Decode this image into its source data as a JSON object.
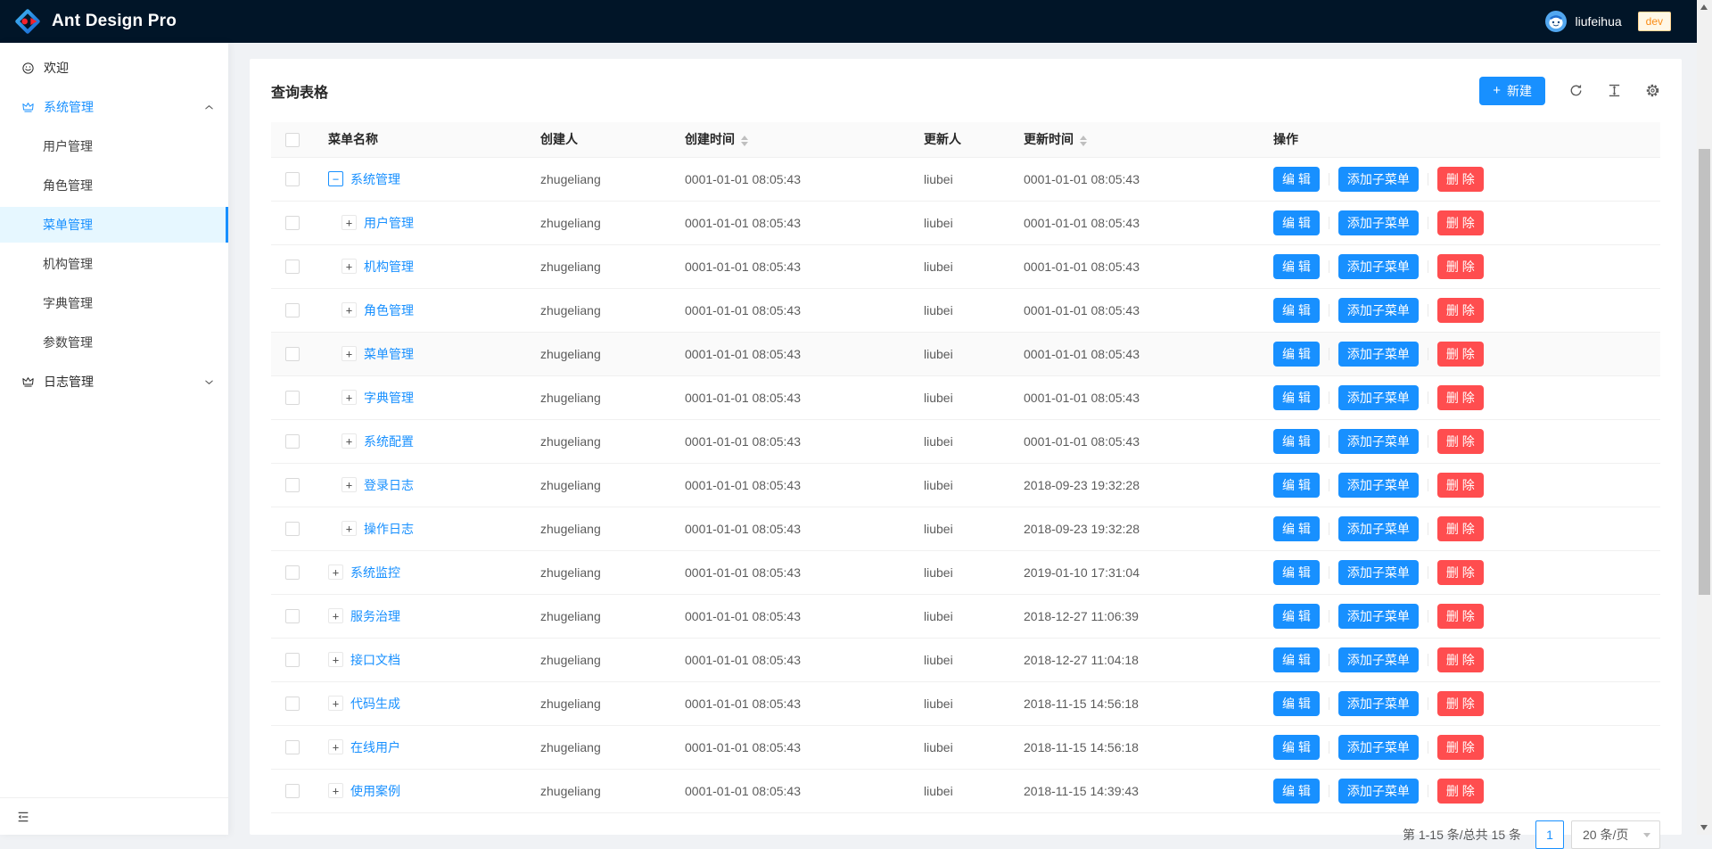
{
  "topbar": {
    "title": "Ant Design Pro",
    "user_name": "liufeihua",
    "env_tag": "dev"
  },
  "sidebar": {
    "welcome": "欢迎",
    "system_group": "系统管理",
    "system_children": [
      "用户管理",
      "角色管理",
      "菜单管理",
      "机构管理",
      "字典管理",
      "参数管理"
    ],
    "selected": "菜单管理",
    "log_group": "日志管理"
  },
  "card": {
    "title": "查询表格",
    "new_button": "新建"
  },
  "table": {
    "headers": {
      "name": "菜单名称",
      "creator": "创建人",
      "created": "创建时间",
      "updater": "更新人",
      "updated": "更新时间",
      "actions": "操作"
    },
    "action_labels": {
      "edit": "编 辑",
      "add_child": "添加子菜单",
      "remove": "删 除"
    },
    "rows": [
      {
        "name": "系统管理",
        "level": 0,
        "expand": "minus",
        "creator": "zhugeliang",
        "created": "0001-01-01 08:05:43",
        "updater": "liubei",
        "updated": "0001-01-01 08:05:43"
      },
      {
        "name": "用户管理",
        "level": 1,
        "expand": "plus",
        "creator": "zhugeliang",
        "created": "0001-01-01 08:05:43",
        "updater": "liubei",
        "updated": "0001-01-01 08:05:43"
      },
      {
        "name": "机构管理",
        "level": 1,
        "expand": "plus",
        "creator": "zhugeliang",
        "created": "0001-01-01 08:05:43",
        "updater": "liubei",
        "updated": "0001-01-01 08:05:43"
      },
      {
        "name": "角色管理",
        "level": 1,
        "expand": "plus",
        "creator": "zhugeliang",
        "created": "0001-01-01 08:05:43",
        "updater": "liubei",
        "updated": "0001-01-01 08:05:43"
      },
      {
        "name": "菜单管理",
        "level": 1,
        "expand": "plus",
        "creator": "zhugeliang",
        "created": "0001-01-01 08:05:43",
        "updater": "liubei",
        "updated": "0001-01-01 08:05:43",
        "hover": true
      },
      {
        "name": "字典管理",
        "level": 1,
        "expand": "plus",
        "creator": "zhugeliang",
        "created": "0001-01-01 08:05:43",
        "updater": "liubei",
        "updated": "0001-01-01 08:05:43"
      },
      {
        "name": "系统配置",
        "level": 1,
        "expand": "plus",
        "creator": "zhugeliang",
        "created": "0001-01-01 08:05:43",
        "updater": "liubei",
        "updated": "0001-01-01 08:05:43"
      },
      {
        "name": "登录日志",
        "level": 1,
        "expand": "plus",
        "creator": "zhugeliang",
        "created": "0001-01-01 08:05:43",
        "updater": "liubei",
        "updated": "2018-09-23 19:32:28"
      },
      {
        "name": "操作日志",
        "level": 1,
        "expand": "plus",
        "creator": "zhugeliang",
        "created": "0001-01-01 08:05:43",
        "updater": "liubei",
        "updated": "2018-09-23 19:32:28"
      },
      {
        "name": "系统监控",
        "level": 0,
        "expand": "plus",
        "creator": "zhugeliang",
        "created": "0001-01-01 08:05:43",
        "updater": "liubei",
        "updated": "2019-01-10 17:31:04"
      },
      {
        "name": "服务治理",
        "level": 0,
        "expand": "plus",
        "creator": "zhugeliang",
        "created": "0001-01-01 08:05:43",
        "updater": "liubei",
        "updated": "2018-12-27 11:06:39"
      },
      {
        "name": "接口文档",
        "level": 0,
        "expand": "plus",
        "creator": "zhugeliang",
        "created": "0001-01-01 08:05:43",
        "updater": "liubei",
        "updated": "2018-12-27 11:04:18"
      },
      {
        "name": "代码生成",
        "level": 0,
        "expand": "plus",
        "creator": "zhugeliang",
        "created": "0001-01-01 08:05:43",
        "updater": "liubei",
        "updated": "2018-11-15 14:56:18"
      },
      {
        "name": "在线用户",
        "level": 0,
        "expand": "plus",
        "creator": "zhugeliang",
        "created": "0001-01-01 08:05:43",
        "updater": "liubei",
        "updated": "2018-11-15 14:56:18"
      },
      {
        "name": "使用案例",
        "level": 0,
        "expand": "plus",
        "creator": "zhugeliang",
        "created": "0001-01-01 08:05:43",
        "updater": "liubei",
        "updated": "2018-11-15 14:39:43"
      }
    ]
  },
  "pagination": {
    "total_text": "第 1-15 条/总共 15 条",
    "current_page": "1",
    "page_size": "20 条/页"
  },
  "colors": {
    "accent": "#1890ff",
    "danger": "#ff4d4f",
    "topbar_bg": "#011528",
    "selected_bg": "#e6f7ff"
  }
}
